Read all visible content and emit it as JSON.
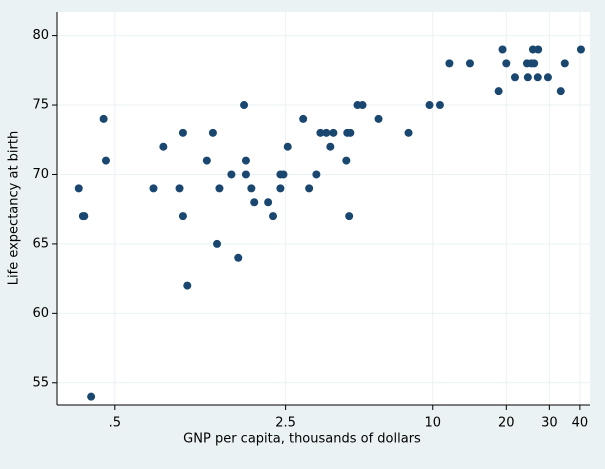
{
  "chart_data": {
    "type": "scatter",
    "x_label": "GNP per capita, thousands of dollars",
    "y_label": "Life expectancy at birth",
    "log_x": true,
    "grid": true,
    "color": "#1a476f",
    "xlim": [
      0.29,
      44
    ],
    "ylim": [
      53.4,
      81.7
    ],
    "xticks": [
      {
        "value": 0.5,
        "label": ".5"
      },
      2.5,
      10,
      20,
      30,
      40
    ],
    "yticks": [
      55,
      60,
      65,
      70,
      75,
      80
    ],
    "x": [
      0.356,
      0.37,
      0.375,
      0.4,
      0.45,
      0.46,
      0.72,
      0.79,
      0.92,
      0.95,
      0.95,
      0.99,
      1.19,
      1.26,
      1.31,
      1.34,
      1.5,
      1.6,
      1.69,
      1.72,
      1.72,
      1.81,
      1.86,
      2.12,
      2.22,
      2.38,
      2.45,
      2.38,
      2.55,
      2.95,
      3.12,
      3.34,
      3.47,
      3.67,
      3.81,
      3.92,
      4.43,
      4.47,
      4.6,
      4.55,
      4.92,
      5.16,
      6.0,
      7.96,
      9.7,
      10.7,
      11.7,
      14.2,
      18.6,
      19.3,
      20,
      21.7,
      24.3,
      24.5,
      25.3,
      25.7,
      26,
      26.9,
      27,
      29.6,
      33.4,
      34.7,
      40.4
    ],
    "values": [
      69,
      67,
      67,
      54,
      74,
      71,
      69,
      72,
      69,
      73,
      67,
      62,
      71,
      73,
      65,
      69,
      70,
      64,
      75,
      71,
      70,
      69,
      68,
      68,
      67,
      70,
      70,
      69,
      72,
      74,
      69,
      70,
      73,
      73,
      72,
      73,
      71,
      73,
      73,
      67,
      75,
      75,
      74,
      73,
      75,
      75,
      78,
      78,
      76,
      79,
      78,
      77,
      78,
      77,
      78,
      79,
      78,
      77,
      79,
      77,
      76,
      78,
      79
    ]
  }
}
